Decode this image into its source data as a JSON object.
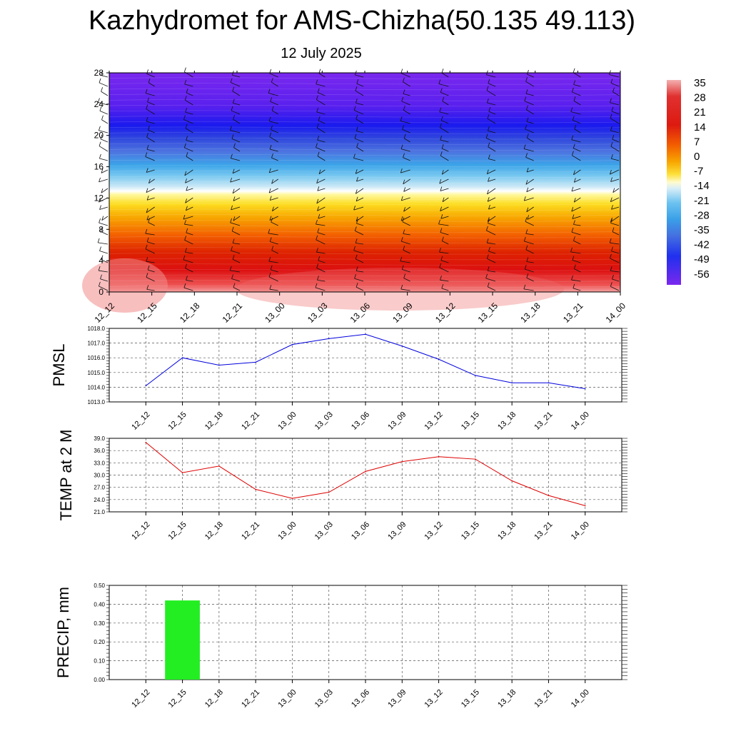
{
  "header": {
    "title": "Kazhydromet for AMS-Chizha(50.135 49.113)",
    "date": "12 July 2025"
  },
  "time_labels": [
    "12_12",
    "12_15",
    "12_18",
    "12_21",
    "13_00",
    "13_03",
    "13_06",
    "13_09",
    "13_12",
    "13_15",
    "13_18",
    "13_21",
    "14_00"
  ],
  "colors": {
    "pmsl_line": "#0000dd",
    "temp_line": "#dd0000",
    "precip_bar": "#22ee22"
  },
  "chart_data": [
    {
      "type": "heatmap",
      "title": "",
      "xlabel": "",
      "ylabel": "",
      "ylim": [
        0,
        28
      ],
      "y_ticks": [
        "0",
        "4",
        "8",
        "12",
        "16",
        "20",
        "24",
        "28"
      ],
      "x": [
        "12_12",
        "12_15",
        "12_18",
        "12_21",
        "13_00",
        "13_03",
        "13_06",
        "13_09",
        "13_12",
        "13_15",
        "13_18",
        "13_21",
        "14_00"
      ],
      "colorbar": {
        "labels": [
          "35",
          "28",
          "21",
          "14",
          "7",
          "0",
          "-7",
          "-14",
          "-21",
          "-28",
          "-35",
          "-42",
          "-49",
          "-56"
        ],
        "range": [
          -60,
          38
        ]
      },
      "overlay": "wind barbs"
    },
    {
      "type": "line",
      "ylabel": "PMSL",
      "ylim": [
        1013.0,
        1018.0
      ],
      "y_ticks": [
        "1013.0",
        "1014.0",
        "1015.0",
        "1016.0",
        "1017.0",
        "1018.0"
      ],
      "grid": true,
      "categories": [
        "12_12",
        "12_15",
        "12_18",
        "12_21",
        "13_00",
        "13_03",
        "13_06",
        "13_09",
        "13_12",
        "13_15",
        "13_18",
        "13_21",
        "14_00"
      ],
      "values": [
        1014.1,
        1016.0,
        1015.5,
        1015.7,
        1016.9,
        1017.3,
        1017.6,
        1016.8,
        1015.9,
        1014.8,
        1014.3,
        1014.3,
        1013.9
      ]
    },
    {
      "type": "line",
      "ylabel": "TEMP at 2 M",
      "ylim": [
        21.0,
        39.0
      ],
      "y_ticks": [
        "21.0",
        "24.0",
        "27.0",
        "30.0",
        "33.0",
        "36.0",
        "39.0"
      ],
      "grid": true,
      "categories": [
        "12_12",
        "12_15",
        "12_18",
        "12_21",
        "13_00",
        "13_03",
        "13_06",
        "13_09",
        "13_12",
        "13_15",
        "13_18",
        "13_21",
        "14_00"
      ],
      "values": [
        38.0,
        30.6,
        32.2,
        26.5,
        24.3,
        25.8,
        30.9,
        33.3,
        34.5,
        33.9,
        28.6,
        25.0,
        22.5
      ]
    },
    {
      "type": "bar",
      "ylabel": "PRECIP, mm",
      "ylim": [
        0.0,
        0.5
      ],
      "y_ticks": [
        "0.00",
        "0.10",
        "0.20",
        "0.30",
        "0.40",
        "0.50"
      ],
      "grid": true,
      "categories": [
        "12_12",
        "12_15",
        "12_18",
        "12_21",
        "13_00",
        "13_03",
        "13_06",
        "13_09",
        "13_12",
        "13_15",
        "13_18",
        "13_21",
        "14_00"
      ],
      "values": [
        0,
        0.42,
        0,
        0,
        0,
        0,
        0,
        0,
        0,
        0,
        0,
        0,
        0
      ]
    }
  ]
}
